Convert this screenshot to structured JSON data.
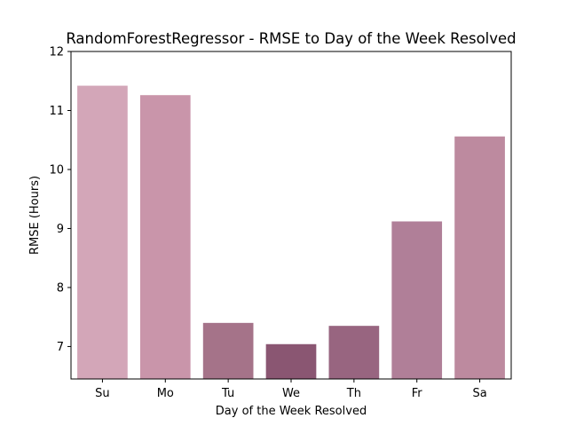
{
  "chart_data": {
    "type": "bar",
    "title": "RandomForestRegressor - RMSE to Day of the Week Resolved",
    "xlabel": "Day of the Week Resolved",
    "ylabel": "RMSE (Hours)",
    "categories": [
      "Su",
      "Mo",
      "Tu",
      "We",
      "Th",
      "Fr",
      "Sa"
    ],
    "values": [
      11.42,
      11.26,
      7.4,
      7.04,
      7.35,
      9.12,
      10.56
    ],
    "colors": [
      "#d3a6b8",
      "#c995aa",
      "#a57389",
      "#8a5672",
      "#986580",
      "#b07f98",
      "#bd8a9f"
    ],
    "ylim": [
      6.45,
      12.0
    ],
    "yticks": [
      7,
      8,
      9,
      10,
      11,
      12
    ],
    "grid": false,
    "legend": null
  }
}
